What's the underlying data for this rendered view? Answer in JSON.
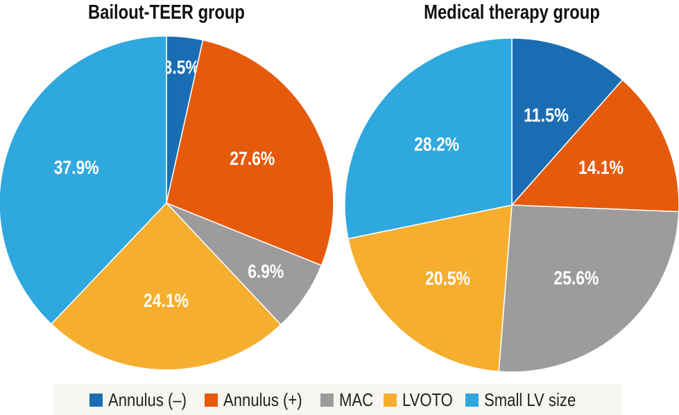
{
  "chart_data": [
    {
      "type": "pie",
      "title": "Bailout-TEER group",
      "categories": [
        "Annulus (–)",
        "Annulus (+)",
        "MAC",
        "LVOTO",
        "Small LV size"
      ],
      "values": [
        3.5,
        27.6,
        6.9,
        24.1,
        37.9
      ],
      "data_labels": [
        "3.5%",
        "27.6%",
        "6.9%",
        "24.1%",
        "37.9%"
      ]
    },
    {
      "type": "pie",
      "title": "Medical therapy group",
      "categories": [
        "Annulus (–)",
        "Annulus (+)",
        "MAC",
        "LVOTO",
        "Small LV size"
      ],
      "values": [
        11.5,
        14.1,
        25.6,
        20.5,
        28.2
      ],
      "data_labels": [
        "11.5%",
        "14.1%",
        "25.6%",
        "20.5%",
        "28.2%"
      ]
    }
  ],
  "legend": {
    "placement": "bottom",
    "items": [
      {
        "label": "Annulus (–)",
        "color": "#1b6db3"
      },
      {
        "label": "Annulus (+)",
        "color": "#e65a0c"
      },
      {
        "label": "MAC",
        "color": "#9c9c9c"
      },
      {
        "label": "LVOTO",
        "color": "#f6ae2f"
      },
      {
        "label": "Small LV size",
        "color": "#2ea8df"
      }
    ]
  }
}
